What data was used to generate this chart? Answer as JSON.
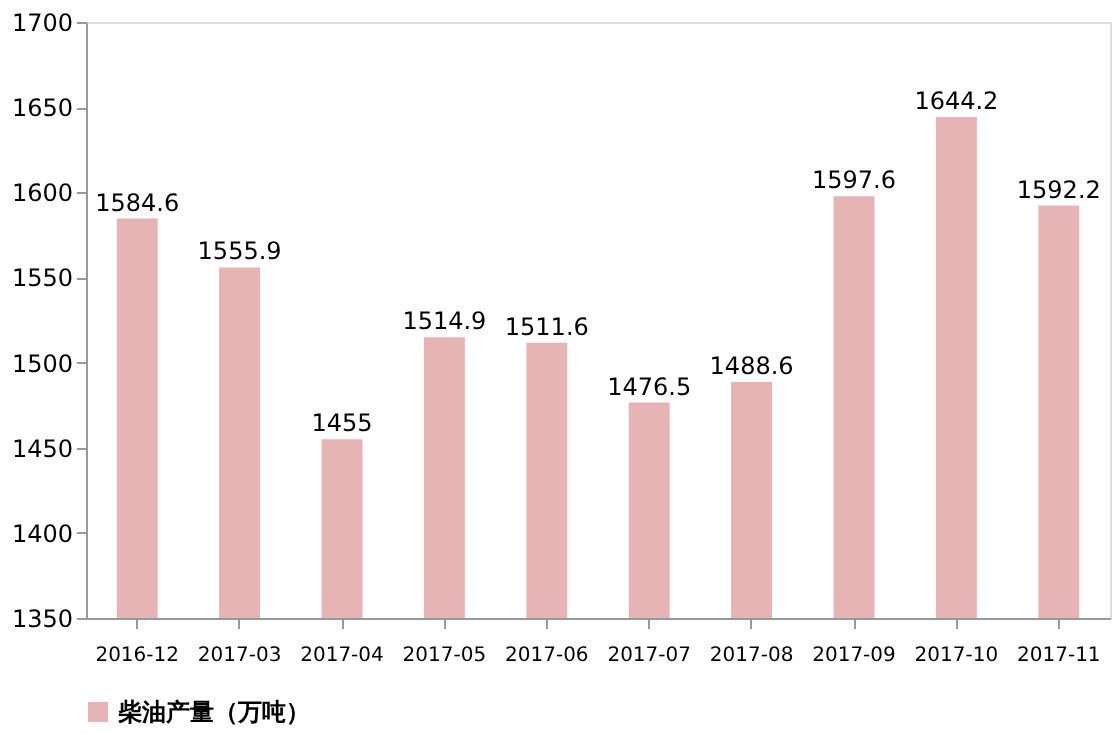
{
  "chart_data": {
    "type": "bar",
    "categories": [
      "2016-12",
      "2017-03",
      "2017-04",
      "2017-05",
      "2017-06",
      "2017-07",
      "2017-08",
      "2017-09",
      "2017-10",
      "2017-11"
    ],
    "series": [
      {
        "name": "柴油产量（万吨）",
        "color": "#e6b4b4",
        "values": [
          1584.6,
          1555.9,
          1455,
          1514.9,
          1511.6,
          1476.5,
          1488.6,
          1597.6,
          1644.2,
          1592.2
        ]
      }
    ],
    "ylim": [
      1350,
      1700
    ],
    "yticks": [
      1350,
      1400,
      1450,
      1500,
      1550,
      1600,
      1650,
      1700
    ],
    "grid": false,
    "legend": "bottom",
    "data_labels": true
  }
}
